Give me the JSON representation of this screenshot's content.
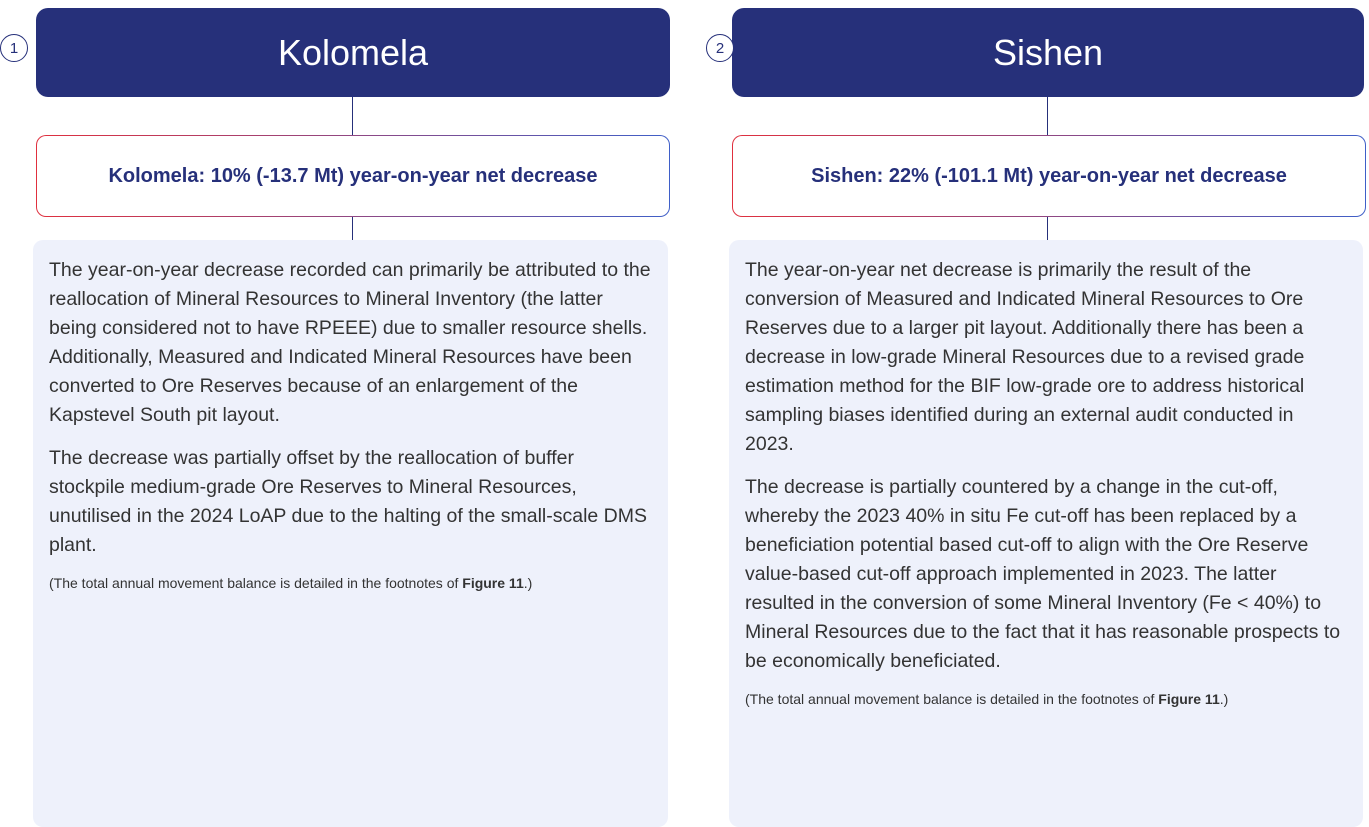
{
  "columns": [
    {
      "number": "1",
      "title": "Kolomela",
      "subtitle": "Kolomela: 10% (-13.7 Mt) year-on-year net decrease",
      "paragraphs": [
        "The year-on-year decrease recorded can primarily be attributed to the reallocation of Mineral Resources to Mineral Inventory (the latter being considered not to have RPEEE) due to smaller resource shells. Additionally, Measured and Indicated Mineral Resources have been converted to Ore Reserves because of an enlargement of the Kapstevel South pit layout.",
        "The decrease was partially offset by the reallocation of buffer stockpile medium-grade Ore Reserves to Mineral Resources, unutilised in the 2024 LoAP due to the halting of the small-scale DMS plant."
      ],
      "footnote": [
        "(The total annual movement balance is detailed in the footnotes of ",
        "Figure 11",
        ".)"
      ]
    },
    {
      "number": "2",
      "title": "Sishen",
      "subtitle": "Sishen: 22% (-101.1 Mt) year-on-year net decrease",
      "paragraphs": [
        "The year-on-year net decrease is primarily the result of the conversion of Measured and Indicated Mineral Resources to Ore Reserves due to a larger pit layout. Additionally there has been a decrease in low-grade Mineral Resources due to a revised grade estimation method for the BIF low-grade ore to address historical sampling biases identified during an external audit conducted in 2023.",
        "The decrease is partially countered by a change in the cut-off, whereby the 2023 40% in situ Fe cut-off has been replaced by a beneficiation potential based cut-off to align with the Ore Reserve value-based cut-off approach implemented in 2023. The latter resulted in the conversion of some Mineral Inventory (Fe < 40%) to Mineral Resources due to the fact that it has reasonable prospects to be economically beneficiated."
      ],
      "footnote": [
        "(The total annual movement balance is detailed in the footnotes of ",
        "Figure 11",
        ".)"
      ]
    }
  ]
}
